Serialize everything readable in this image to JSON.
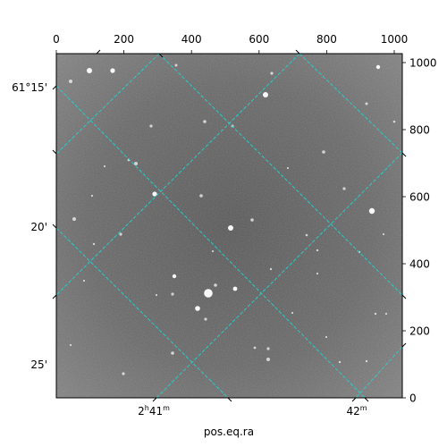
{
  "figure": {
    "xlabel": "pos.eq.ra",
    "pixel_axes": {
      "top_ticks": [
        "0",
        "200",
        "400",
        "600",
        "800",
        "1000"
      ],
      "right_ticks": [
        "0",
        "200",
        "400",
        "600",
        "800",
        "1000"
      ]
    },
    "world_axes": {
      "ra_ticks": [
        {
          "main": "2",
          "sup": "h",
          "rest": "41",
          "sup2": "m"
        },
        {
          "main": "42",
          "sup": "m",
          "rest": "",
          "sup2": ""
        }
      ],
      "dec_ticks": [
        "61°15'",
        "20'",
        "25'"
      ]
    },
    "colors": {
      "grid": "#22d3d3",
      "frame": "#000000",
      "sky_center": "#5a5a5a",
      "sky_edge": "#838383",
      "stars": "#ffffff"
    }
  }
}
